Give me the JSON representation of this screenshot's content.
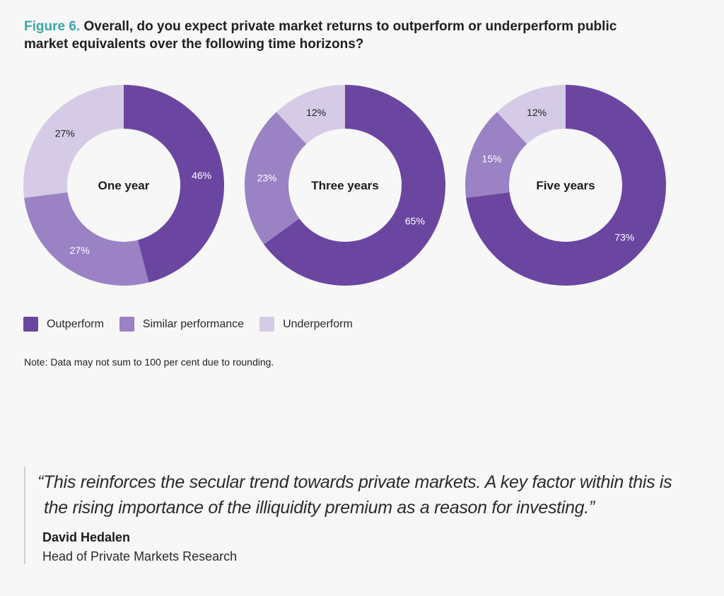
{
  "title": {
    "label": "Figure 6.",
    "line1": "Overall, do you expect private market returns to outperform or underperform public",
    "line2": "market equivalents over the following time horizons?"
  },
  "colors": {
    "outperform": "#6b46a1",
    "similar": "#9a82c4",
    "underperform": "#d6cbe6",
    "figure_label": "#3aa6a8"
  },
  "chart_data": {
    "type": "pie",
    "style": "donut",
    "title": "Overall, do you expect private market returns to outperform or underperform public market equivalents over the following time horizons?",
    "categories": [
      "Outperform",
      "Similar performance",
      "Underperform"
    ],
    "charts": [
      {
        "name": "One year",
        "values": [
          46,
          27,
          27
        ],
        "labels": [
          "46%",
          "27%",
          "27%"
        ]
      },
      {
        "name": "Three years",
        "values": [
          65,
          23,
          12
        ],
        "labels": [
          "65%",
          "23%",
          "12%"
        ]
      },
      {
        "name": "Five years",
        "values": [
          73,
          15,
          12
        ],
        "labels": [
          "73%",
          "15%",
          "12%"
        ]
      }
    ],
    "legend": [
      "Outperform",
      "Similar performance",
      "Underperform"
    ],
    "legend_position": "bottom-left"
  },
  "note": "Note: Data may not sum to 100 per cent due to rounding.",
  "quote": {
    "line1": "“This reinforces the secular trend towards private markets. A key factor within this is",
    "line2": "the rising importance of the illiquidity premium as a reason for investing.”",
    "author": "David Hedalen",
    "role": "Head of Private Markets Research"
  }
}
